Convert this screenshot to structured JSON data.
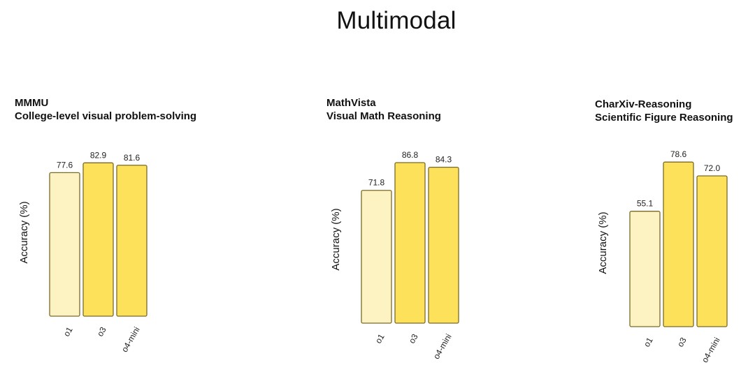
{
  "title": "Multimodal",
  "colors": {
    "o1": "#fdf2c2",
    "o3": "#fde15a",
    "o4-mini": "#fde15a",
    "border": "#7a6a2a"
  },
  "chart_data": [
    {
      "type": "bar",
      "title": "MMMU",
      "subtitle": "College-level visual problem-solving",
      "ylabel": "Accuracy (%)",
      "categories": [
        "o1",
        "o3",
        "o4-mini"
      ],
      "values": [
        77.6,
        82.9,
        81.6
      ],
      "value_labels": [
        "77.6",
        "82.9",
        "81.6"
      ],
      "ylim": [
        0,
        100
      ]
    },
    {
      "type": "bar",
      "title": "MathVista",
      "subtitle": "Visual Math Reasoning",
      "ylabel": "Accuracy (%)",
      "categories": [
        "o1",
        "o3",
        "o4-mini"
      ],
      "values": [
        71.8,
        86.8,
        84.3
      ],
      "value_labels": [
        "71.8",
        "86.8",
        "84.3"
      ],
      "ylim": [
        0,
        100
      ]
    },
    {
      "type": "bar",
      "title": "CharXiv-Reasoning",
      "subtitle": "Scientific Figure Reasoning",
      "ylabel": "Accuracy (%)",
      "categories": [
        "o1",
        "o3",
        "o4-mini"
      ],
      "values": [
        55.1,
        78.6,
        72.0
      ],
      "value_labels": [
        "55.1",
        "78.6",
        "72.0"
      ],
      "ylim": [
        0,
        100
      ]
    }
  ]
}
